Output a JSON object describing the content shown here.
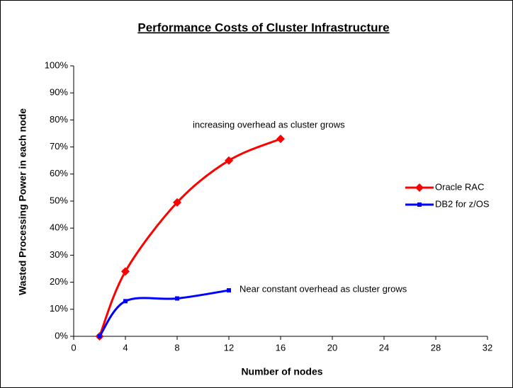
{
  "chart_data": {
    "type": "line",
    "title": "Performance Costs of Cluster Infrastructure",
    "xlabel": "Number of nodes",
    "ylabel": "Wasted Processing Power in each node",
    "series": [
      {
        "name": "Oracle RAC",
        "color": "#ff0000",
        "marker": "diamond",
        "x": [
          2,
          4,
          8,
          12,
          16
        ],
        "values": [
          0,
          24,
          49.5,
          65,
          73
        ]
      },
      {
        "name": "DB2 for z/OS",
        "color": "#0000ff",
        "marker": "square",
        "x": [
          2,
          4,
          8,
          12
        ],
        "values": [
          0,
          13,
          14,
          17
        ]
      }
    ],
    "annotations": [
      "increasing overhead as cluster grows",
      "Near constant overhead as cluster grows"
    ],
    "xlim": [
      0,
      32
    ],
    "xticks": [
      0,
      4,
      8,
      12,
      16,
      20,
      24,
      28,
      32
    ],
    "ylim": [
      0,
      100
    ],
    "yticks": [
      {
        "value": 0,
        "label": "0%"
      },
      {
        "value": 10,
        "label": "10%"
      },
      {
        "value": 20,
        "label": "20%"
      },
      {
        "value": 30,
        "label": "30%"
      },
      {
        "value": 40,
        "label": "40%"
      },
      {
        "value": 50,
        "label": "50%"
      },
      {
        "value": 60,
        "label": "60%"
      },
      {
        "value": 70,
        "label": "70%"
      },
      {
        "value": 80,
        "label": "80%"
      },
      {
        "value": 90,
        "label": "90%"
      },
      {
        "value": 100,
        "label": "100%"
      }
    ],
    "grid": false,
    "legend": "right"
  }
}
